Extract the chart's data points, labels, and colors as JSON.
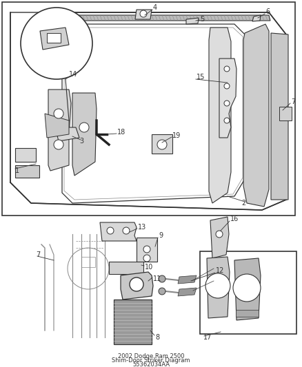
{
  "title_line1": "2002 Dodge Ram 2500",
  "title_line2": "Shim-Door Striker Diagram",
  "title_line3": "55362034AA",
  "bg_color": "#e8e8e8",
  "white": "#ffffff",
  "dark": "#333333",
  "mid": "#888888",
  "light": "#bbbbbb",
  "figsize": [
    4.38,
    5.33
  ],
  "dpi": 100,
  "label_fs": 7,
  "title_fs": 6
}
